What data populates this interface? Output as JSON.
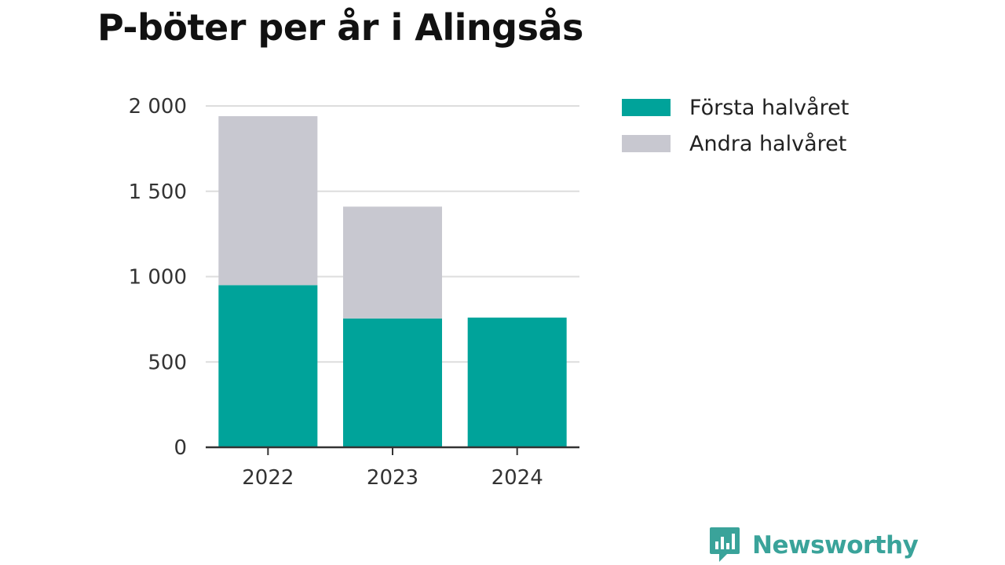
{
  "chart_data": {
    "type": "bar",
    "stacked": true,
    "title": "P-böter per år i Alingsås",
    "categories": [
      "2022",
      "2023",
      "2024"
    ],
    "series": [
      {
        "name": "Första halvåret",
        "color": "#00a39a",
        "values": [
          950,
          755,
          760
        ]
      },
      {
        "name": "Andra halvåret",
        "color": "#c8c8d0",
        "values": [
          990,
          655,
          0
        ]
      }
    ],
    "yticks": [
      0,
      500,
      1000,
      1500,
      2000
    ],
    "ytick_labels": [
      "0",
      "500",
      "1 000",
      "1 500",
      "2 000"
    ],
    "ylim": [
      0,
      2000
    ],
    "grid": true,
    "legend_position": "top-right"
  },
  "brand": {
    "name": "Newsworthy",
    "icon": "bar-chart-speech-bubble-icon",
    "color": "#3aa39a"
  }
}
